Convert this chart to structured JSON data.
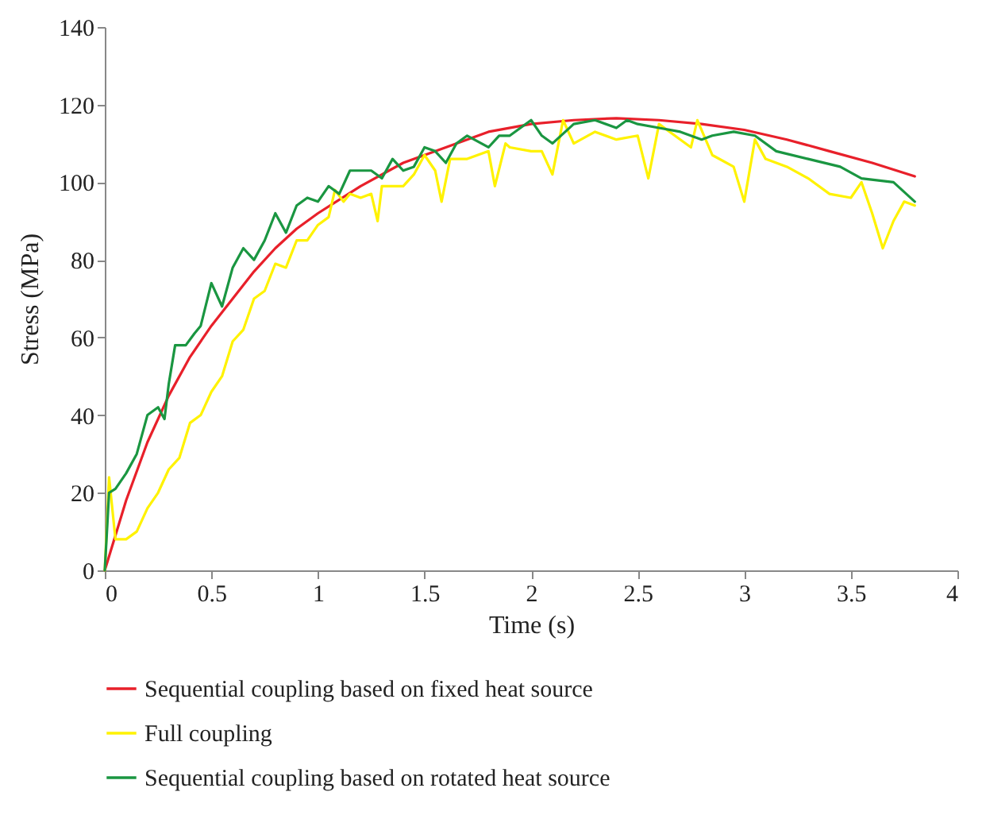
{
  "chart_data": {
    "type": "line",
    "xlabel": "Time (s)",
    "ylabel": "Stress (MPa)",
    "xlim": [
      0,
      4
    ],
    "xticks": [
      0,
      0.5,
      1,
      1.5,
      2,
      2.5,
      3,
      3.5,
      4
    ],
    "ylim": [
      0,
      140
    ],
    "yticks": [
      0,
      20,
      40,
      60,
      80,
      100,
      120,
      140
    ],
    "grid": false,
    "legend": "bottom",
    "marker": "none",
    "line_style": "solid",
    "series": [
      {
        "name": "Sequential coupling based on fixed heat source",
        "color": "#e8202a",
        "x": [
          0,
          0.1,
          0.2,
          0.3,
          0.4,
          0.5,
          0.6,
          0.7,
          0.8,
          0.9,
          1.0,
          1.2,
          1.4,
          1.6,
          1.8,
          2.0,
          2.2,
          2.4,
          2.6,
          2.8,
          3.0,
          3.2,
          3.4,
          3.6,
          3.8
        ],
        "values": [
          0,
          18,
          33,
          45,
          55,
          63,
          70,
          77,
          83,
          88,
          92,
          99,
          105,
          109,
          113,
          115,
          116,
          116.5,
          116,
          115,
          113.5,
          111,
          108,
          105,
          101.5
        ]
      },
      {
        "name": "Full coupling",
        "color": "#fff200",
        "x": [
          0,
          0.02,
          0.05,
          0.1,
          0.15,
          0.2,
          0.25,
          0.3,
          0.35,
          0.4,
          0.45,
          0.5,
          0.55,
          0.6,
          0.65,
          0.7,
          0.75,
          0.8,
          0.85,
          0.9,
          0.95,
          1.0,
          1.05,
          1.08,
          1.12,
          1.15,
          1.2,
          1.25,
          1.28,
          1.3,
          1.4,
          1.45,
          1.5,
          1.55,
          1.58,
          1.62,
          1.7,
          1.8,
          1.83,
          1.88,
          1.9,
          2.0,
          2.05,
          2.1,
          2.15,
          2.2,
          2.3,
          2.4,
          2.5,
          2.55,
          2.6,
          2.7,
          2.75,
          2.78,
          2.85,
          2.95,
          3.0,
          3.05,
          3.1,
          3.2,
          3.3,
          3.4,
          3.5,
          3.55,
          3.6,
          3.65,
          3.7,
          3.75,
          3.8
        ],
        "values": [
          0,
          24,
          8,
          8,
          10,
          16,
          20,
          26,
          29,
          38,
          40,
          46,
          50,
          59,
          62,
          70,
          72,
          79,
          78,
          85,
          85,
          89,
          91,
          98,
          95,
          97,
          96,
          97,
          90,
          99,
          99,
          102,
          107,
          103,
          95,
          106,
          106,
          108,
          99,
          110,
          109,
          108,
          108,
          102,
          116,
          110,
          113,
          111,
          112,
          101,
          115,
          111,
          109,
          116,
          107,
          104,
          95,
          111,
          106,
          104,
          101,
          97,
          96,
          100,
          92,
          83,
          90,
          95,
          94
        ]
      },
      {
        "name": "Sequential coupling based on rotated heat source",
        "color": "#1a9641",
        "x": [
          0,
          0.02,
          0.05,
          0.1,
          0.15,
          0.2,
          0.25,
          0.28,
          0.3,
          0.33,
          0.38,
          0.42,
          0.45,
          0.5,
          0.55,
          0.6,
          0.65,
          0.7,
          0.75,
          0.8,
          0.85,
          0.9,
          0.95,
          1.0,
          1.05,
          1.1,
          1.15,
          1.2,
          1.25,
          1.3,
          1.35,
          1.4,
          1.45,
          1.5,
          1.55,
          1.6,
          1.65,
          1.7,
          1.8,
          1.85,
          1.9,
          2.0,
          2.05,
          2.1,
          2.2,
          2.3,
          2.4,
          2.45,
          2.5,
          2.6,
          2.7,
          2.8,
          2.85,
          2.95,
          3.05,
          3.15,
          3.3,
          3.45,
          3.55,
          3.7,
          3.8
        ],
        "values": [
          0,
          20,
          21,
          25,
          30,
          40,
          42,
          39,
          48,
          58,
          58,
          61,
          63,
          74,
          68,
          78,
          83,
          80,
          85,
          92,
          87,
          94,
          96,
          95,
          99,
          97,
          103,
          103,
          103,
          101,
          106,
          103,
          104,
          109,
          108,
          105,
          110,
          112,
          109,
          112,
          112,
          116,
          112,
          110,
          115,
          116,
          114,
          116,
          115,
          114,
          113,
          111,
          112,
          113,
          112,
          108,
          106,
          104,
          101,
          100,
          95
        ]
      }
    ]
  }
}
